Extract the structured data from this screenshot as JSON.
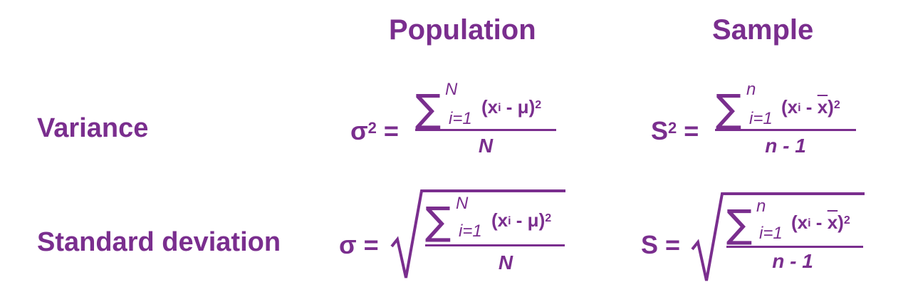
{
  "headers": {
    "population": "Population",
    "sample": "Sample"
  },
  "rows": {
    "variance": "Variance",
    "std_dev": "Standard deviation"
  },
  "symbols": {
    "sigma_sq": "σ",
    "s_sq": "S",
    "squared": "2",
    "sigma": "σ",
    "s": "S",
    "equals": "=",
    "sum": "∑",
    "sqrt": "√"
  },
  "population": {
    "upper_limit": "N",
    "lower_limit": "i=1",
    "term_open": "(x",
    "term_sub": "i",
    "term_mid": " - μ)",
    "term_sup": "2",
    "denominator": "N"
  },
  "sample": {
    "upper_limit": "n",
    "lower_limit": "i=1",
    "term_open": "(x",
    "term_sub": "i",
    "term_minus": " - ",
    "term_xbar": "x",
    "term_close": ")",
    "term_sup": "2",
    "denominator": "n - 1"
  },
  "colors": {
    "text": "#7a2e8e",
    "background": "#ffffff"
  }
}
